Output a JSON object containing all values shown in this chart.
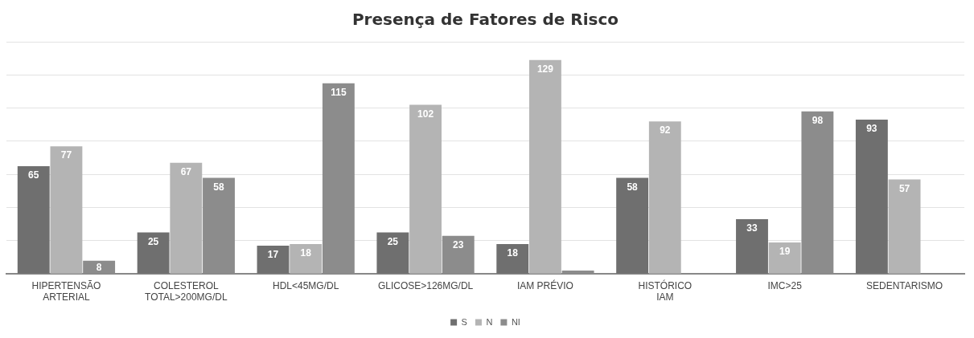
{
  "chart_data": {
    "type": "bar",
    "title": "Presença de Fatores de Risco",
    "categories": [
      "HIPERTENSÃO ARTERIAL",
      "COLESTEROL TOTAL>200MG/DL",
      "HDL<45MG/DL",
      "GLICOSE>126MG/DL",
      "IAM PRÉVIO",
      "HISTÓRICO IAM",
      "IMC>25",
      "SEDENTARISMO"
    ],
    "series": [
      {
        "name": "S",
        "color": "#6f6f6f",
        "values": [
          65,
          25,
          17,
          25,
          18,
          58,
          33,
          93
        ],
        "value_labels": [
          "65",
          "25",
          "17",
          "25",
          "18",
          "58",
          "33",
          "93"
        ]
      },
      {
        "name": "N",
        "color": "#b4b4b4",
        "values": [
          77,
          67,
          18,
          102,
          129,
          92,
          19,
          57
        ],
        "value_labels": [
          "77",
          "67",
          "18",
          "102",
          "129",
          "92",
          "19",
          "57"
        ]
      },
      {
        "name": "NI",
        "color": "#8c8c8c",
        "values": [
          8,
          58,
          115,
          23,
          2,
          null,
          98,
          null
        ],
        "value_labels": [
          "8",
          "58",
          "115",
          "23",
          null,
          null,
          "98",
          null
        ]
      }
    ],
    "ylim": [
      0,
      140
    ],
    "yticks": [
      {
        "value": 0,
        "label": null
      },
      {
        "value": 20,
        "label": null
      },
      {
        "value": 40,
        "label": null
      },
      {
        "value": 60,
        "label": null
      },
      {
        "value": 80,
        "label": null
      },
      {
        "value": 100,
        "label": null
      },
      {
        "value": 120,
        "label": null
      },
      {
        "value": 140,
        "label": null
      }
    ],
    "tick_labels": "x",
    "grid": "y",
    "legend": "bottom"
  }
}
